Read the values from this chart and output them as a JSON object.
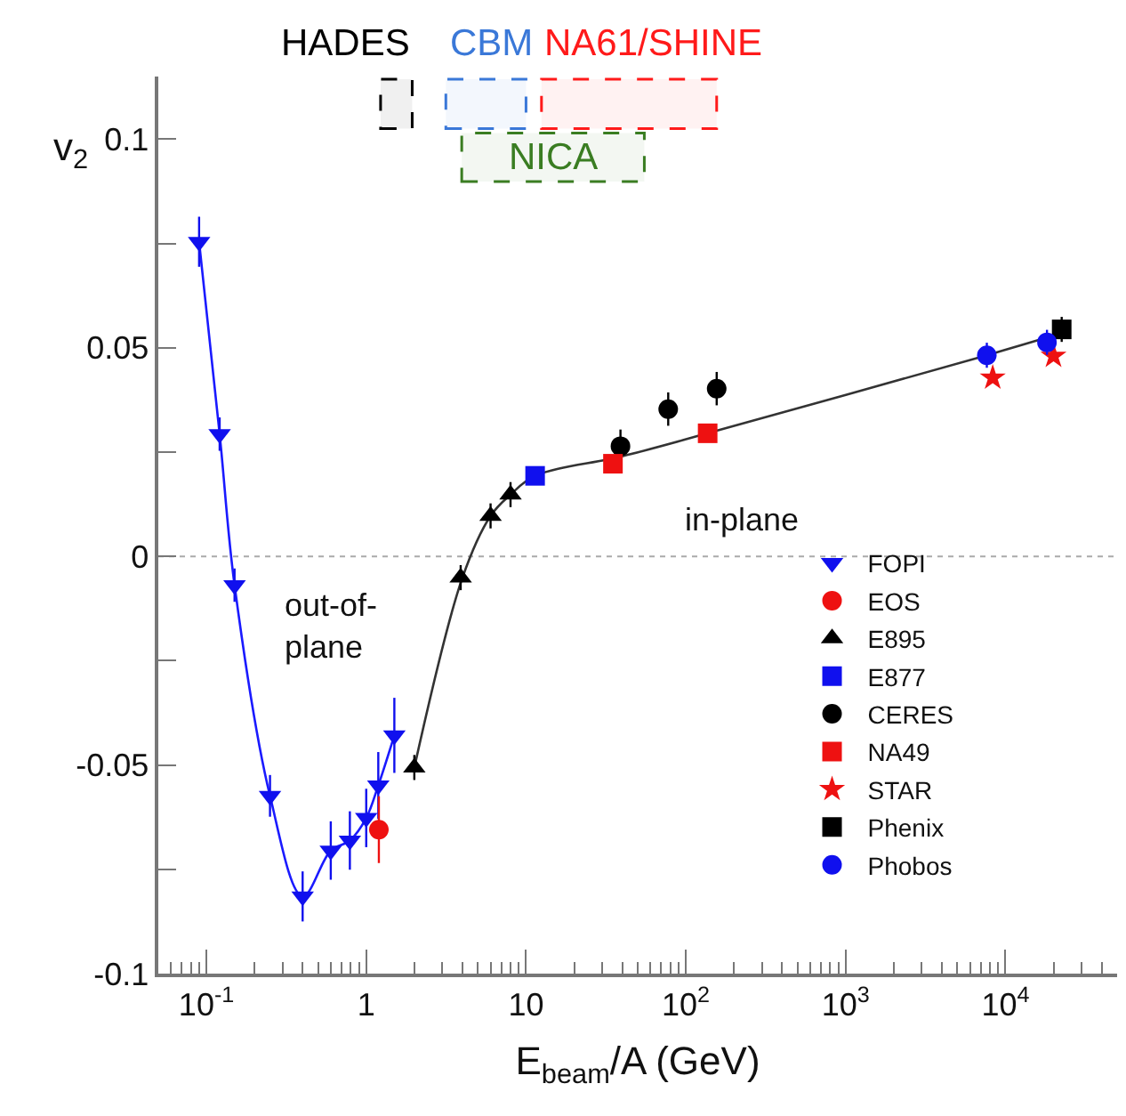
{
  "chart_data": {
    "type": "scatter",
    "xlabel": "E$_{beam}$/A (GeV)",
    "ylabel": "v$_{2}$",
    "log": "x",
    "grid": false,
    "legend": "bottom right",
    "xlim": [
      0.05,
      50000
    ],
    "ylim": [
      -0.1,
      0.115
    ],
    "xticks": [
      {
        "value": 0.1,
        "label": "10$^{-1}$"
      },
      1,
      10,
      {
        "value": 100,
        "label": "10$^{2}$"
      },
      {
        "value": 1000,
        "label": "10$^{3}$"
      },
      {
        "value": 10000,
        "label": "10$^{4}$"
      }
    ],
    "yticks": [
      -0.1,
      {
        "value": -0.075,
        "label": null
      },
      -0.05,
      {
        "value": -0.025,
        "label": null
      },
      0,
      {
        "value": 0.025,
        "label": null
      },
      0.05,
      {
        "value": 0.075,
        "label": null
      },
      0.1
    ],
    "series": [
      {
        "type": "line",
        "color": "#1a1aff",
        "x": [
          0.09,
          0.121,
          0.15,
          0.25,
          0.4,
          0.6,
          0.79,
          1.0,
          1.19,
          1.5
        ],
        "values": [
          0.0754,
          0.0293,
          -0.0069,
          -0.0574,
          -0.0815,
          -0.0705,
          -0.0681,
          -0.0627,
          -0.0549,
          -0.0429
        ],
        "marker": "none",
        "line_style": "solid"
      },
      {
        "type": "line",
        "color": "#333333",
        "x": [
          2,
          4,
          6,
          8,
          11.4,
          40,
          137,
          7650,
          22500
        ],
        "values": [
          -0.0506,
          -0.0051,
          0.0097,
          0.0148,
          0.0193,
          0.024,
          0.0295,
          0.0482,
          0.0535
        ],
        "marker": "none",
        "line_style": "solid"
      },
      {
        "name": "FOPI",
        "color": "#1010ee",
        "marker": "triangle-down",
        "x": [
          0.09,
          0.121,
          0.15,
          0.25,
          0.4,
          0.6,
          0.79,
          1.0,
          1.19,
          1.5
        ],
        "values": [
          0.0754,
          0.0293,
          -0.0069,
          -0.0574,
          -0.0815,
          -0.0705,
          -0.0681,
          -0.0627,
          -0.0549,
          -0.0429
        ],
        "errors": [
          0.006,
          0.004,
          0.004,
          0.005,
          0.006,
          0.007,
          0.007,
          0.007,
          0.008,
          0.009
        ]
      },
      {
        "name": "EOS",
        "color": "#ee1111",
        "marker": "circle",
        "x": [
          1.2
        ],
        "values": [
          -0.0655
        ],
        "errors": [
          0.008
        ]
      },
      {
        "name": "E895",
        "color": "#000000",
        "marker": "triangle",
        "x": [
          2,
          3.9,
          6,
          8
        ],
        "values": [
          -0.0506,
          -0.0051,
          0.0097,
          0.0148
        ],
        "errors": [
          0.003,
          0.003,
          0.003,
          0.003
        ]
      },
      {
        "name": "E877",
        "color": "#1010ee",
        "marker": "square",
        "x": [
          11.4
        ],
        "values": [
          0.0193
        ]
      },
      {
        "name": "CERES",
        "color": "#000000",
        "marker": "circle",
        "x": [
          39,
          77.6,
          156
        ],
        "values": [
          0.0264,
          0.0353,
          0.0402
        ],
        "errors": [
          0.004,
          0.004,
          0.004
        ]
      },
      {
        "name": "NA49",
        "color": "#ee1111",
        "marker": "square",
        "x": [
          35,
          137
        ],
        "values": [
          0.0222,
          0.0295
        ]
      },
      {
        "name": "STAR",
        "color": "#ee1111",
        "marker": "star",
        "x": [
          8330,
          20000
        ],
        "values": [
          0.0428,
          0.048
        ]
      },
      {
        "name": "Phenix",
        "color": "#000000",
        "marker": "square",
        "x": [
          22500
        ],
        "values": [
          0.0544
        ],
        "errors": [
          0.003
        ]
      },
      {
        "name": "Phobos",
        "color": "#1010ee",
        "marker": "circle",
        "x": [
          7650,
          18200
        ],
        "values": [
          0.0482,
          0.0513
        ],
        "errors": [
          0.003,
          0.003
        ]
      }
    ],
    "ref_lines": [
      {
        "axis": "y",
        "value": 0,
        "color": "#aaaaaa",
        "line_style": "dotted"
      }
    ],
    "bands": [
      {
        "axis": "x",
        "from": 1.23,
        "to": 1.94,
        "label": "HADES",
        "color": "#000000"
      },
      {
        "axis": "x",
        "from": 3.15,
        "to": 10,
        "label": "CBM",
        "color": "#3a78d8"
      },
      {
        "axis": "x",
        "from": 12.5,
        "to": 156,
        "label": "NA61/SHINE",
        "color": "#ff1a1a"
      },
      {
        "axis": "x",
        "from": 3.96,
        "to": 55,
        "label": "NICA",
        "color": "#3a7d22"
      }
    ],
    "annotations": [
      "out-of-\nplane",
      "in-plane"
    ]
  }
}
